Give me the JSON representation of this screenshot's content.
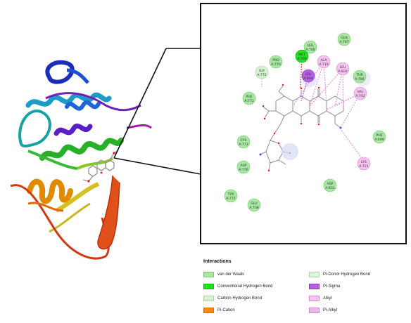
{
  "residues": [
    {
      "id": "gln767",
      "line1": "GLN",
      "line2": "A:767",
      "type": "vdw"
    },
    {
      "id": "leu768",
      "line1": "LEU",
      "line2": "A:768",
      "type": "vdw"
    },
    {
      "id": "met769",
      "line1": "MET",
      "line2": "A:769",
      "type": "hbond"
    },
    {
      "id": "ala719",
      "line1": "ALA",
      "line2": "A:719",
      "type": "alkyl"
    },
    {
      "id": "leu820",
      "line1": "LEU",
      "line2": "A:820",
      "type": "alkyl"
    },
    {
      "id": "thr766",
      "line1": "THR",
      "line2": "A:766",
      "type": "vdw"
    },
    {
      "id": "pro770",
      "line1": "PRO",
      "line2": "A:770",
      "type": "vdw"
    },
    {
      "id": "gly772",
      "line1": "GLY",
      "line2": "A:772",
      "type": "carbon_h"
    },
    {
      "id": "leu694",
      "line1": "LEU",
      "line2": "A:694",
      "type": "pi_sigma"
    },
    {
      "id": "val702",
      "line1": "VAL",
      "line2": "A:702",
      "type": "alkyl"
    },
    {
      "id": "phe771",
      "line1": "PHE",
      "line2": "A:771",
      "type": "vdw"
    },
    {
      "id": "phe699",
      "line1": "PHE",
      "line2": "A:699",
      "type": "vdw"
    },
    {
      "id": "cys773",
      "line1": "CYS",
      "line2": "A:773",
      "type": "vdw"
    },
    {
      "id": "asp776",
      "line1": "ASP",
      "line2": "A:776",
      "type": "vdw"
    },
    {
      "id": "lys721",
      "line1": "LYS",
      "line2": "A:721",
      "type": "alkyl"
    },
    {
      "id": "asp831",
      "line1": "ASP",
      "line2": "A:831",
      "type": "vdw"
    },
    {
      "id": "tyr777",
      "line1": "TYR",
      "line2": "A:777",
      "type": "vdw"
    },
    {
      "id": "glu738",
      "line1": "GLU",
      "line2": "A:738",
      "type": "vdw"
    }
  ],
  "legend": {
    "title": "Interactions",
    "items": [
      {
        "label": "van der Waals",
        "color": "#a6e8a0",
        "border": "#7cc878"
      },
      {
        "label": "Conventional Hydrogen Bond",
        "color": "#1fe11f",
        "border": "#17b017"
      },
      {
        "label": "Carbon Hydrogen Bond",
        "color": "#d8f3d4",
        "border": "#a8d2a2"
      },
      {
        "label": "Pi-Cation",
        "color": "#ff8c00",
        "border": "#d07000"
      },
      {
        "label": "Pi-Donor Hydrogen Bond",
        "color": "#dff2de",
        "border": "#b0d0ae"
      },
      {
        "label": "Pi-Sigma",
        "color": "#b45fe0",
        "border": "#9040c0"
      },
      {
        "label": "Alkyl",
        "color": "#f7c1f2",
        "border": "#d090cc"
      },
      {
        "label": "Pi-Alkyl",
        "color": "#f2b6ef",
        "border": "#c98cc6"
      }
    ]
  },
  "colors": {
    "vdw": "#a6e8a0",
    "hbond": "#1fe11f",
    "carbon_h": "#d8f3d4",
    "pi_sigma": "#b45fe0",
    "alkyl": "#f7c1f2",
    "alkyl_line": "#e58ae0",
    "ligand": "#8c8c8c"
  }
}
